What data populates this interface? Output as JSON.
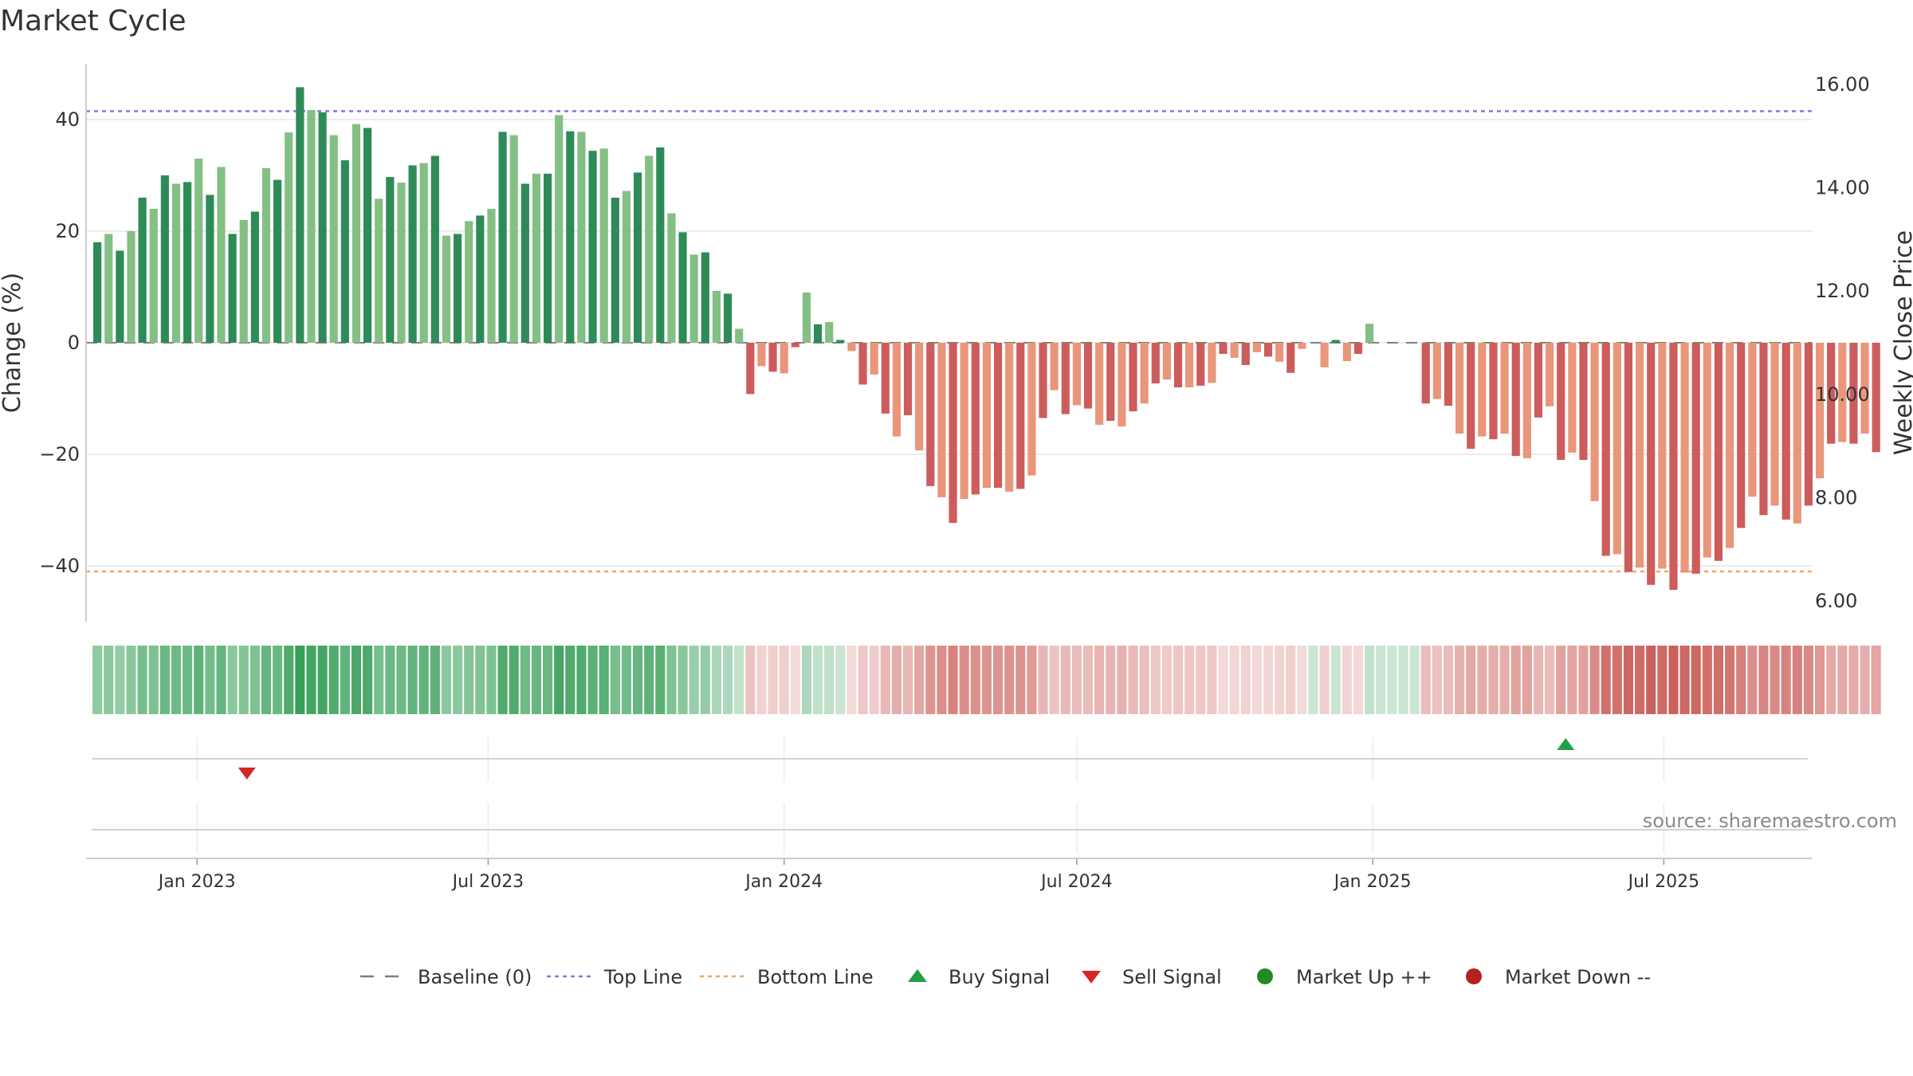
{
  "chart_data": {
    "type": "bar",
    "title": "Market Cycle",
    "ylabel": "Change (%)",
    "y2label": "Weekly Close Price",
    "source": "source: sharemaestro.com",
    "ylim": [
      -50,
      50
    ],
    "y2lim": [
      5.6,
      16.4
    ],
    "yticks": [
      40,
      20,
      0,
      -20,
      -40
    ],
    "ytick_labels": [
      "40",
      "20",
      "0",
      "−20",
      "−40"
    ],
    "y2ticks": [
      16,
      14,
      12,
      10,
      8,
      6
    ],
    "y2tick_labels": [
      "16.00",
      "14.00",
      "12.00",
      "10.00",
      "8.00",
      "6.00"
    ],
    "x_start": "2022-10-24",
    "x_end": "2025-10-01",
    "bar_dates_start": "2022-10-31",
    "bar_interval_days": 7,
    "xticks": [
      "2023-01-01",
      "2023-07-01",
      "2024-01-01",
      "2024-07-01",
      "2025-01-01",
      "2025-07-01"
    ],
    "xtick_labels": [
      "Jan 2023",
      "Jul 2023",
      "Jan 2024",
      "Jul 2024",
      "Jan 2025",
      "Jul 2025"
    ],
    "values": [
      18,
      19.5,
      16.5,
      20,
      26,
      24,
      30,
      28.5,
      28.8,
      33,
      26.5,
      31.5,
      19.5,
      22,
      23.5,
      31.3,
      29.2,
      37.7,
      45.8,
      41.7,
      41.3,
      37.2,
      32.7,
      39.2,
      38.5,
      25.8,
      29.7,
      28.7,
      31.8,
      32.2,
      33.5,
      19.2,
      19.5,
      21.8,
      22.8,
      24,
      37.8,
      37.2,
      28.5,
      30.3,
      30.3,
      40.8,
      37.9,
      37.8,
      34.4,
      34.8,
      26,
      27.2,
      30.5,
      33.5,
      35,
      23.2,
      19.8,
      15.8,
      16.2,
      9.3,
      8.8,
      2.5,
      -9.2,
      -4.2,
      -5.2,
      -5.5,
      -0.8,
      9,
      3.3,
      3.7,
      0.5,
      -1.5,
      -7.5,
      -5.7,
      -12.7,
      -16.8,
      -13,
      -19.3,
      -25.7,
      -27.7,
      -32.3,
      -28,
      -27.2,
      -26,
      -26,
      -26.7,
      -26.2,
      -23.8,
      -13.5,
      -8.5,
      -12.8,
      -11.2,
      -11.8,
      -14.7,
      -14,
      -15,
      -12.3,
      -10.9,
      -7.3,
      -6.6,
      -8,
      -8,
      -7.7,
      -7.2,
      -2,
      -2.7,
      -4,
      -1.7,
      -2.5,
      -3.4,
      -5.4,
      -1.1,
      0,
      -4.4,
      0.5,
      -3.3,
      -2,
      3.4,
      0,
      0,
      0,
      0,
      -10.9,
      -10.1,
      -11.3,
      -16.3,
      -19,
      -16.8,
      -17.3,
      -16.3,
      -20.3,
      -20.7,
      -13.4,
      -11.4,
      -21,
      -19.7,
      -21,
      -28.4,
      -38.2,
      -37.9,
      -41.1,
      -40.3,
      -43.4,
      -40.5,
      -44.3,
      -41.2,
      -41.4,
      -38.5,
      -39.1,
      -36.8,
      -33.2,
      -27.6,
      -30.9,
      -29.2,
      -31.7,
      -32.4,
      -29.2,
      -24.3,
      -18.1,
      -17.8,
      -18.1,
      -16.3,
      -19.6
    ],
    "buy_signals": [
      {
        "date": "2025-05-01"
      }
    ],
    "sell_signals": [
      {
        "date": "2023-02-01"
      }
    ],
    "reference_lines": {
      "baseline": 0,
      "top_line": 41.5,
      "bottom_line": -41
    },
    "colors": {
      "up_dark": "#2e8b57",
      "up_light": "#84bf84",
      "down_dark": "#cd5c5c",
      "down_light": "#e9967a",
      "top_line": "#9370db",
      "bottom_line": "#f4a460",
      "buy": "#22a045",
      "sell": "#d62728",
      "market_up": "#228b22",
      "market_down": "#b22222",
      "baseline": "#808080",
      "grid": "#e6e6e6"
    },
    "grid": true,
    "legend_position": "bottom",
    "legend": [
      {
        "key": "baseline",
        "label": "Baseline (0)",
        "marker": "dash"
      },
      {
        "key": "top_line",
        "label": "Top Line",
        "marker": "dot"
      },
      {
        "key": "bottom_line",
        "label": "Bottom Line",
        "marker": "dot"
      },
      {
        "key": "buy",
        "label": "Buy Signal",
        "marker": "triangle-up"
      },
      {
        "key": "sell",
        "label": "Sell Signal",
        "marker": "triangle-down"
      },
      {
        "key": "market_up",
        "label": "Market Up ++",
        "marker": "circle"
      },
      {
        "key": "market_down",
        "label": "Market Down --",
        "marker": "circle"
      }
    ]
  }
}
